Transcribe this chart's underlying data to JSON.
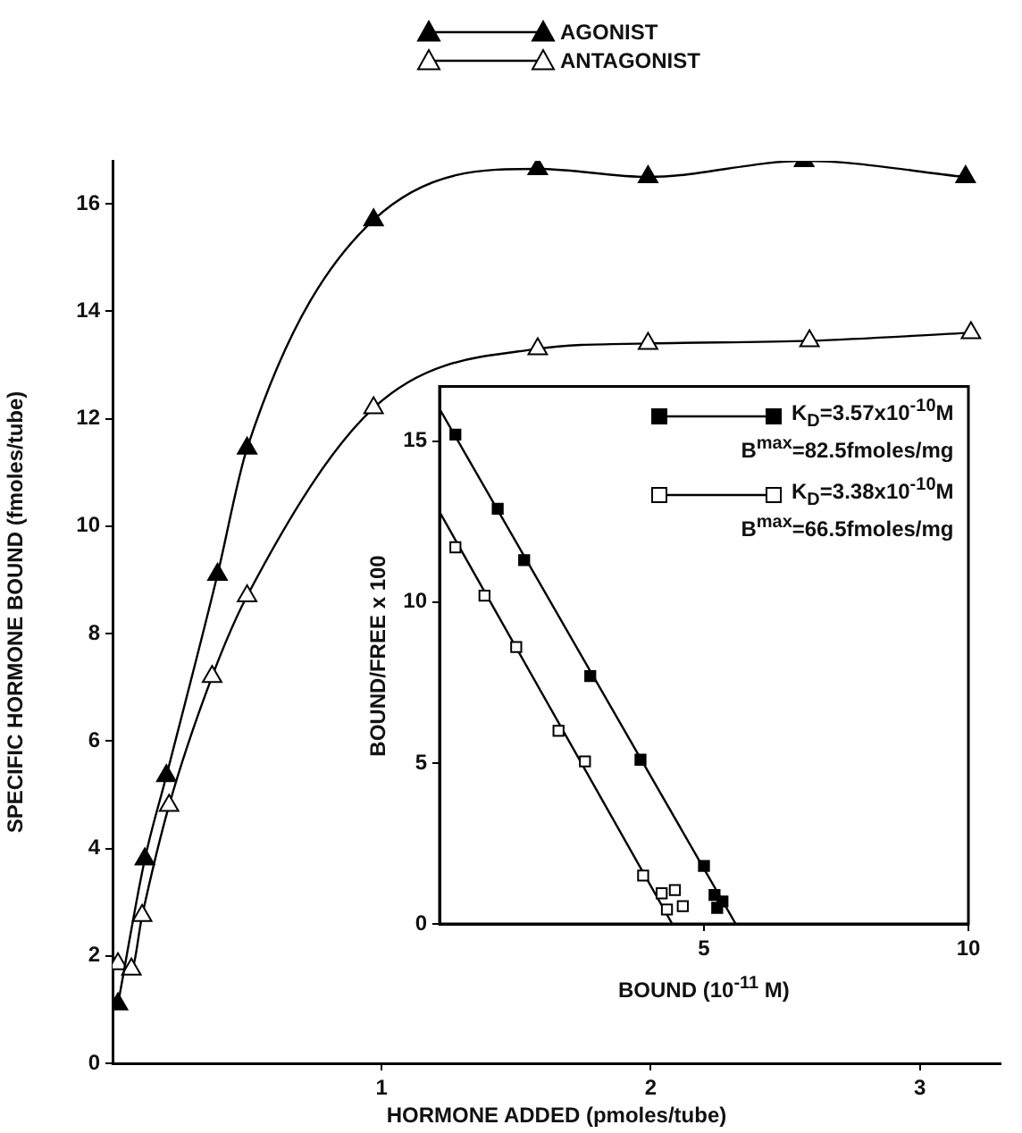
{
  "chart_data": [
    {
      "type": "line",
      "xlabel": "HORMONE ADDED (pmoles/tube)",
      "ylabel": "SPECIFIC HORMONE BOUND (fmoles/tube)",
      "xlim": [
        0,
        3.3
      ],
      "ylim": [
        0,
        16.8
      ],
      "xticks": [
        1,
        2,
        3
      ],
      "yticks": [
        0,
        2,
        4,
        6,
        8,
        10,
        12,
        14,
        16
      ],
      "grid": false,
      "legend": "top",
      "marker": "triangle",
      "series": [
        {
          "name": "AGONIST",
          "color": "#000000",
          "x": [
            0.02,
            0.12,
            0.2,
            0.39,
            0.5,
            0.97,
            1.58,
            1.99,
            2.57,
            3.17
          ],
          "values": [
            1.1,
            3.8,
            5.35,
            9.1,
            11.45,
            15.7,
            16.65,
            16.5,
            16.8,
            16.5
          ]
        },
        {
          "name": "ANTAGONIST",
          "color": "#ffffff",
          "x": [
            0.02,
            0.07,
            0.11,
            0.21,
            0.37,
            0.5,
            0.97,
            1.58,
            1.99,
            2.59,
            3.19
          ],
          "values": [
            1.85,
            1.75,
            2.75,
            4.8,
            7.2,
            8.7,
            12.2,
            13.3,
            13.4,
            13.45,
            13.6
          ]
        }
      ]
    },
    {
      "type": "scatter",
      "xlabel": "BOUND (10$^{-11}$ M)",
      "ylabel": "BOUND/FREE x 100",
      "xlim": [
        0,
        10
      ],
      "ylim": [
        0,
        16.7
      ],
      "xticks": [
        5,
        10
      ],
      "yticks": [
        0,
        5,
        10,
        15
      ],
      "grid": false,
      "legend": "top right",
      "marker": "square",
      "annotations": [
        "B$^{max}$=82.5fmoles/mg",
        "B$^{max}$=66.5fmoles/mg"
      ],
      "series": [
        {
          "name": "K$_{D}$=3.57x10$^{-10}$M",
          "color": "#000000",
          "x": [
            0.3,
            1.1,
            1.6,
            2.85,
            3.8,
            5.0,
            5.2,
            5.35,
            5.25
          ],
          "values": [
            15.2,
            12.9,
            11.3,
            7.7,
            5.1,
            1.8,
            0.9,
            0.7,
            0.5
          ]
        },
        {
          "name": "K$_{D}$=3.38x10$^{-10}$M",
          "color": "#ffffff",
          "x": [
            0.3,
            0.85,
            1.45,
            2.25,
            2.75,
            3.85,
            4.2,
            4.45,
            4.3,
            4.6
          ],
          "values": [
            11.7,
            10.2,
            8.6,
            6.0,
            5.05,
            1.5,
            0.95,
            1.05,
            0.45,
            0.55
          ]
        },
        {
          "type": "line",
          "marker": "none",
          "color": "#000000",
          "x": [
            0,
            5.6
          ],
          "values": [
            16.0,
            0
          ]
        },
        {
          "type": "line",
          "marker": "none",
          "color": "#000000",
          "x": [
            0,
            4.4
          ],
          "values": [
            12.8,
            0
          ]
        }
      ]
    }
  ]
}
